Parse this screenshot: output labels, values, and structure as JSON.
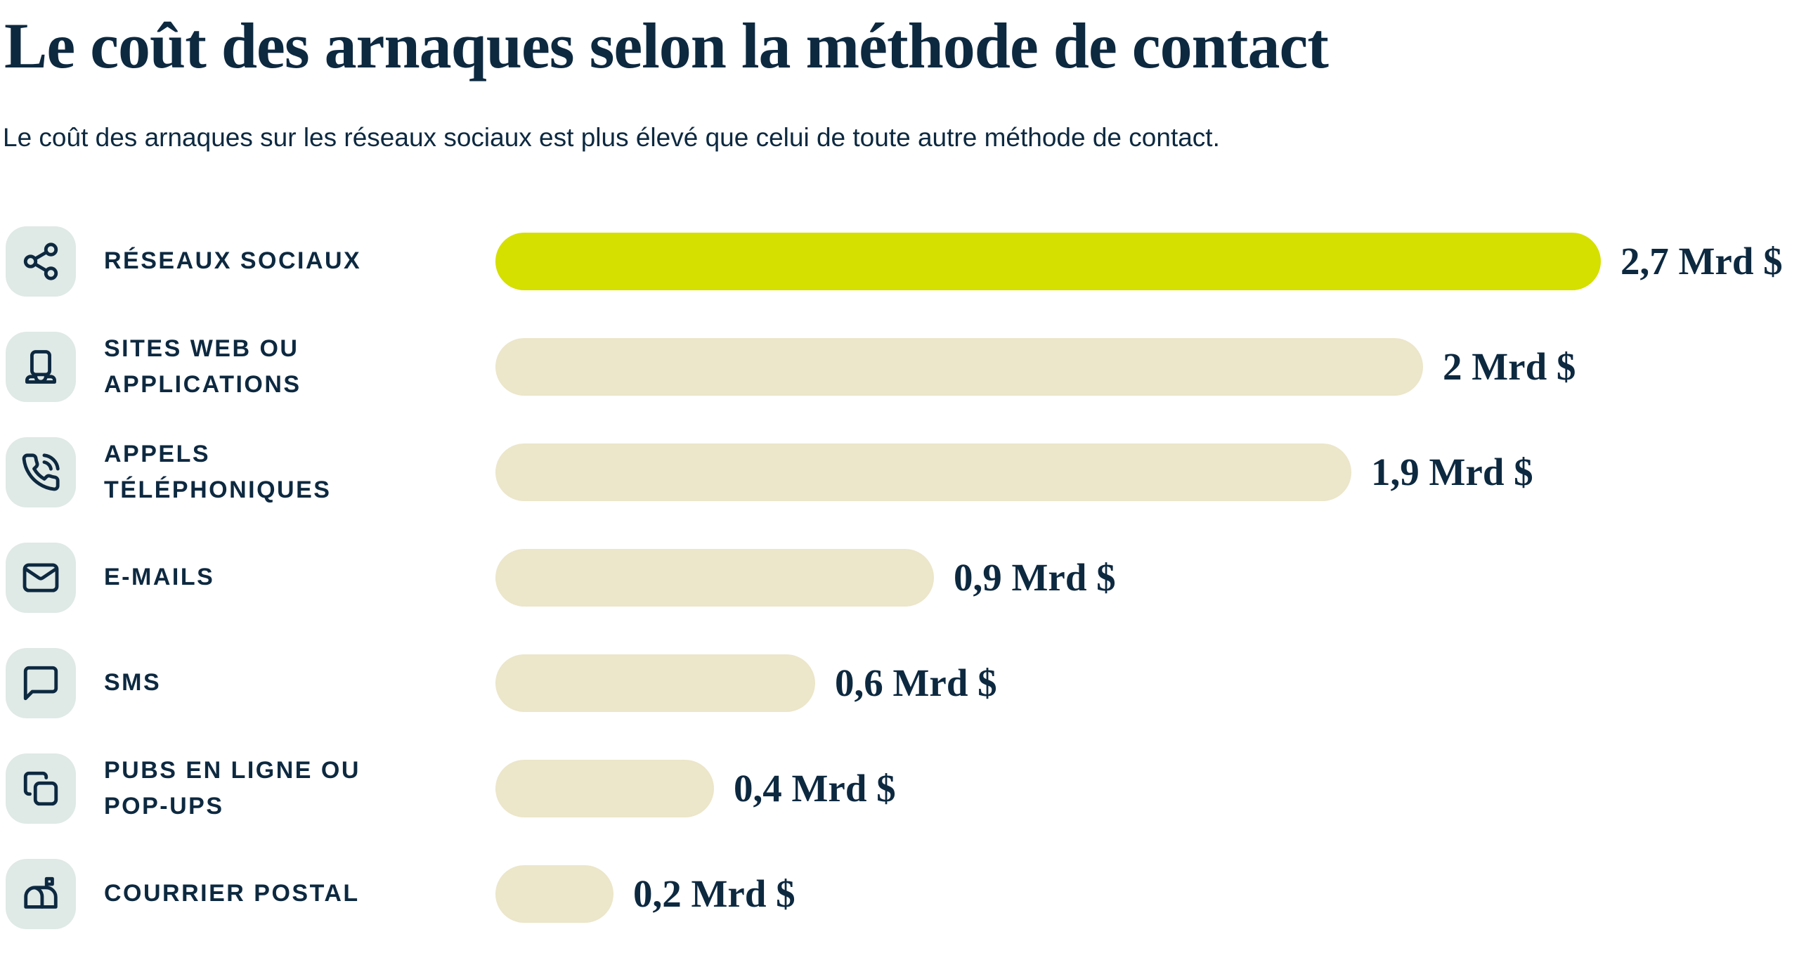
{
  "title": "Le coût des arnaques selon la méthode de contact",
  "subtitle": "Le coût des arnaques sur les réseaux sociaux est plus élevé que celui de toute autre méthode de contact.",
  "colors": {
    "background": "#ffffff",
    "navy": "#0d2940",
    "highlight_bar": "#d5df00",
    "default_bar": "#ece6ca",
    "icon_tile_bg": "#dfe9e6"
  },
  "chart_data": {
    "type": "bar",
    "orientation": "horizontal",
    "title": "Le coût des arnaques selon la méthode de contact",
    "subtitle": "Le coût des arnaques sur les réseaux sociaux est plus élevé que celui de toute autre méthode de contact.",
    "unit": "Mrd $",
    "xlim": [
      0,
      2.7
    ],
    "grid": false,
    "legend": false,
    "categories": [
      "RÉSEAUX SOCIAUX",
      "SITES WEB OU APPLICATIONS",
      "APPELS TÉLÉPHONIQUES",
      "E-MAILS",
      "SMS",
      "PUBS EN LIGNE OU POP-UPS",
      "COURRIER POSTAL"
    ],
    "values": [
      2.7,
      2,
      1.9,
      0.9,
      0.6,
      0.4,
      0.2
    ],
    "rows": [
      {
        "label": "RÉSEAUX SOCIAUX",
        "icon": "share-icon",
        "value": 2.7,
        "value_label": "2,7 Mrd $",
        "bar_pct": 100,
        "highlight": true
      },
      {
        "label": "SITES WEB OU\nAPPLICATIONS",
        "icon": "laptop-icon",
        "value": 2,
        "value_label": "2 Mrd $",
        "bar_pct": 83.9,
        "highlight": false
      },
      {
        "label": "APPELS\nTÉLÉPHONIQUES",
        "icon": "phone-call-icon",
        "value": 1.9,
        "value_label": "1,9 Mrd $",
        "bar_pct": 77.4,
        "highlight": false
      },
      {
        "label": "E-MAILS",
        "icon": "mail-icon",
        "value": 0.9,
        "value_label": "0,9 Mrd $",
        "bar_pct": 39.7,
        "highlight": false
      },
      {
        "label": "SMS",
        "icon": "message-bubble-icon",
        "value": 0.6,
        "value_label": "0,6 Mrd $",
        "bar_pct": 28.9,
        "highlight": false
      },
      {
        "label": "PUBS EN LIGNE OU\nPOP-UPS",
        "icon": "popup-windows-icon",
        "value": 0.4,
        "value_label": "0,4 Mrd $",
        "bar_pct": 19.8,
        "highlight": false
      },
      {
        "label": "COURRIER POSTAL",
        "icon": "mailbox-icon",
        "value": 0.2,
        "value_label": "0,2 Mrd $",
        "bar_pct": 10.7,
        "highlight": false
      }
    ]
  }
}
